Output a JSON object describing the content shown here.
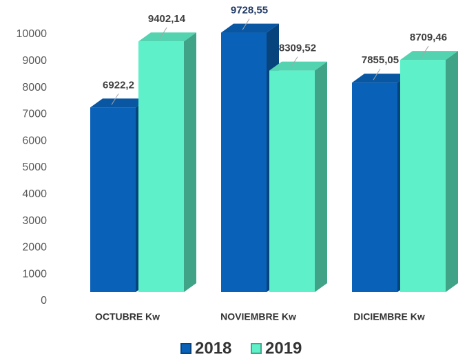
{
  "chart_data": {
    "type": "bar3d",
    "categories": [
      "OCTUBRE Kw",
      "NOVIEMBRE Kw",
      "DICIEMBRE Kw"
    ],
    "series": [
      {
        "name": "2018",
        "color": "#0a62b8",
        "values": [
          6922.2,
          9728.55,
          7855.05
        ],
        "value_labels": [
          "6922,2",
          "9728,55",
          "7855,05"
        ],
        "label_colors": [
          "#404040",
          "#1f3864",
          "#404040"
        ]
      },
      {
        "name": "2019",
        "color": "#5ef0c8",
        "values": [
          9402.14,
          8309.52,
          8709.46
        ],
        "value_labels": [
          "9402,14",
          "8309,52",
          "8709,46"
        ],
        "label_colors": [
          "#404040",
          "#404040",
          "#404040"
        ]
      }
    ],
    "ylim": [
      0,
      10000
    ],
    "yticks": [
      0,
      1000,
      2000,
      3000,
      4000,
      5000,
      6000,
      7000,
      8000,
      9000,
      10000
    ],
    "grid": false,
    "legend": "bottom"
  }
}
